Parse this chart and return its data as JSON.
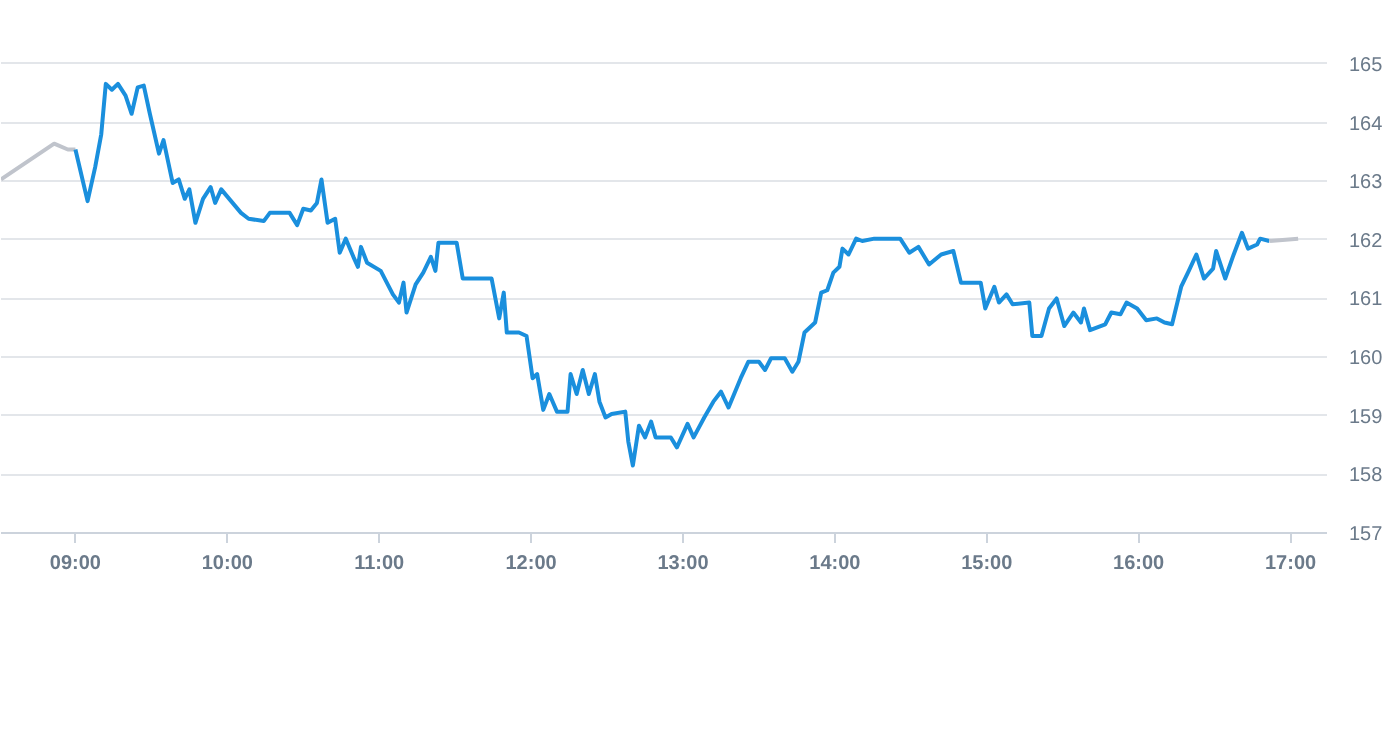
{
  "chart_data": {
    "type": "line",
    "xlim": [
      8.51,
      17.24
    ],
    "ylim": [
      157,
      165.05
    ],
    "xticks": [
      {
        "value": 9,
        "label": "09:00"
      },
      {
        "value": 10,
        "label": "10:00"
      },
      {
        "value": 11,
        "label": "11:00"
      },
      {
        "value": 12,
        "label": "12:00"
      },
      {
        "value": 13,
        "label": "13:00"
      },
      {
        "value": 14,
        "label": "14:00"
      },
      {
        "value": 15,
        "label": "15:00"
      },
      {
        "value": 16,
        "label": "16:00"
      },
      {
        "value": 17,
        "label": "17:00"
      }
    ],
    "yticks": [
      157,
      158,
      159,
      160,
      161,
      162,
      163,
      164,
      165
    ],
    "grid": "y",
    "series": [
      {
        "color": "#c0c4cc",
        "x": [
          8.51,
          8.86,
          8.95,
          9.0
        ],
        "values": [
          163.03,
          163.64,
          163.54,
          163.54
        ]
      },
      {
        "color": "#1a8fdd",
        "x": [
          9.0,
          9.08,
          9.13,
          9.17,
          9.2,
          9.24,
          9.28,
          9.33,
          9.37,
          9.41,
          9.45,
          9.49,
          9.55,
          9.58,
          9.64,
          9.68,
          9.72,
          9.75,
          9.79,
          9.84,
          9.89,
          9.92,
          9.96,
          10.09,
          10.14,
          10.24,
          10.28,
          10.41,
          10.46,
          10.5,
          10.55,
          10.59,
          10.62,
          10.66,
          10.71,
          10.74,
          10.78,
          10.83,
          10.86,
          10.88,
          10.92,
          11.01,
          11.09,
          11.13,
          11.16,
          11.18,
          11.24,
          11.29,
          11.34,
          11.37,
          11.39,
          11.51,
          11.55,
          11.61,
          11.74,
          11.79,
          11.82,
          11.84,
          11.92,
          11.97,
          12.01,
          12.04,
          12.08,
          12.12,
          12.17,
          12.24,
          12.26,
          12.3,
          12.34,
          12.38,
          12.42,
          12.45,
          12.49,
          12.53,
          12.62,
          12.64,
          12.67,
          12.71,
          12.75,
          12.79,
          12.82,
          12.92,
          12.96,
          13.03,
          13.07,
          13.14,
          13.2,
          13.25,
          13.3,
          13.38,
          13.43,
          13.5,
          13.54,
          13.58,
          13.67,
          13.72,
          13.76,
          13.8,
          13.87,
          13.91,
          13.95,
          13.99,
          14.03,
          14.05,
          14.09,
          14.14,
          14.18,
          14.26,
          14.43,
          14.49,
          14.55,
          14.62,
          14.7,
          14.78,
          14.83,
          14.96,
          14.99,
          15.05,
          15.08,
          15.13,
          15.17,
          15.28,
          15.3,
          15.36,
          15.41,
          15.46,
          15.51,
          15.57,
          15.62,
          15.64,
          15.68,
          15.78,
          15.82,
          15.88,
          15.92,
          15.99,
          16.05,
          16.12,
          16.17,
          16.22,
          16.28,
          16.33,
          16.38,
          16.43,
          16.49,
          16.51,
          16.57,
          16.62,
          16.68,
          16.72,
          16.78,
          16.8,
          16.86
        ],
        "values": [
          163.54,
          162.66,
          163.24,
          163.8,
          164.66,
          164.56,
          164.66,
          164.46,
          164.15,
          164.6,
          164.63,
          164.15,
          163.47,
          163.7,
          162.97,
          163.03,
          162.7,
          162.86,
          162.29,
          162.7,
          162.9,
          162.63,
          162.86,
          162.46,
          162.36,
          162.32,
          162.46,
          162.46,
          162.25,
          162.53,
          162.5,
          162.63,
          163.03,
          162.29,
          162.36,
          161.78,
          162.02,
          161.71,
          161.54,
          161.88,
          161.61,
          161.47,
          161.07,
          160.93,
          161.27,
          160.76,
          161.24,
          161.44,
          161.71,
          161.47,
          161.95,
          161.95,
          161.34,
          161.34,
          161.34,
          160.66,
          161.1,
          160.42,
          160.42,
          160.36,
          159.64,
          159.71,
          159.1,
          159.37,
          159.07,
          159.07,
          159.71,
          159.37,
          159.78,
          159.37,
          159.71,
          159.24,
          158.97,
          159.03,
          159.07,
          158.56,
          158.15,
          158.83,
          158.63,
          158.9,
          158.63,
          158.63,
          158.46,
          158.86,
          158.63,
          158.97,
          159.24,
          159.41,
          159.14,
          159.64,
          159.92,
          159.92,
          159.78,
          159.98,
          159.98,
          159.75,
          159.92,
          160.42,
          160.59,
          161.1,
          161.14,
          161.44,
          161.54,
          161.85,
          161.75,
          162.02,
          161.98,
          162.02,
          162.02,
          161.78,
          161.88,
          161.58,
          161.75,
          161.81,
          161.27,
          161.27,
          160.83,
          161.2,
          160.93,
          161.07,
          160.9,
          160.93,
          160.36,
          160.36,
          160.83,
          161.0,
          160.53,
          160.76,
          160.59,
          160.83,
          160.46,
          160.56,
          160.76,
          160.73,
          160.93,
          160.83,
          160.63,
          160.66,
          160.59,
          160.56,
          161.2,
          161.47,
          161.75,
          161.34,
          161.51,
          161.81,
          161.34,
          161.71,
          162.12,
          161.85,
          161.92,
          162.02,
          161.98
        ]
      },
      {
        "color": "#c0c4cc",
        "x": [
          16.86,
          17.05
        ],
        "values": [
          161.98,
          162.02
        ]
      }
    ]
  }
}
